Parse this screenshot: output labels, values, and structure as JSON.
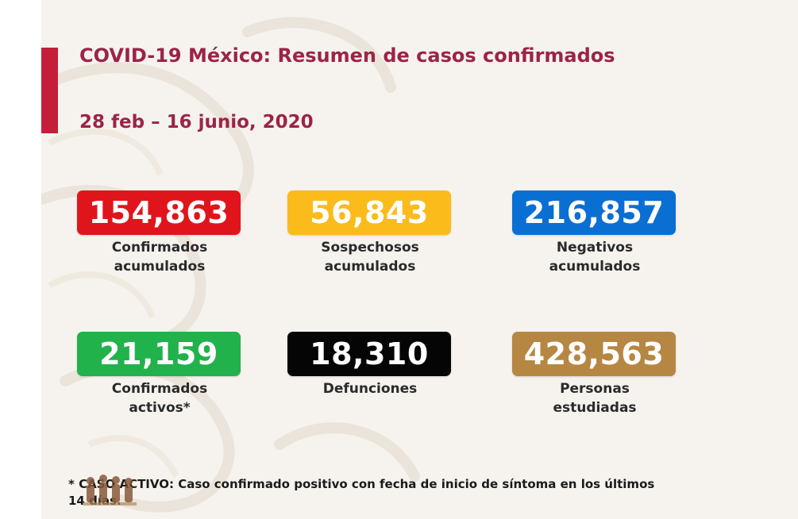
{
  "header": {
    "title": "COVID-19 México: Resumen de casos confirmados",
    "date_range": "28 feb – 16 junio, 2020"
  },
  "stats": [
    {
      "value": "154,863",
      "label": "Confirmados\nacumulados",
      "color": "#e0151b"
    },
    {
      "value": "56,843",
      "label": "Sospechosos\nacumulados",
      "color": "#fbbb1a"
    },
    {
      "value": "216,857",
      "label": "Negativos\nacumulados",
      "color": "#0a6fd2"
    },
    {
      "value": "21,159",
      "label": "Confirmados\nactivos*",
      "color": "#21b24b"
    },
    {
      "value": "18,310",
      "label": "Defunciones",
      "color": "#050505"
    },
    {
      "value": "428,563",
      "label": "Personas\nestudiadas",
      "color": "#b68743"
    }
  ],
  "footnote": {
    "text": "* CASO ACTIVO: Caso confirmado positivo con fecha de inicio de síntoma en los últimos 14 días."
  },
  "colors": {
    "accent": "#c41e3a",
    "title": "#9c2447",
    "background": "#f6f3ef"
  }
}
